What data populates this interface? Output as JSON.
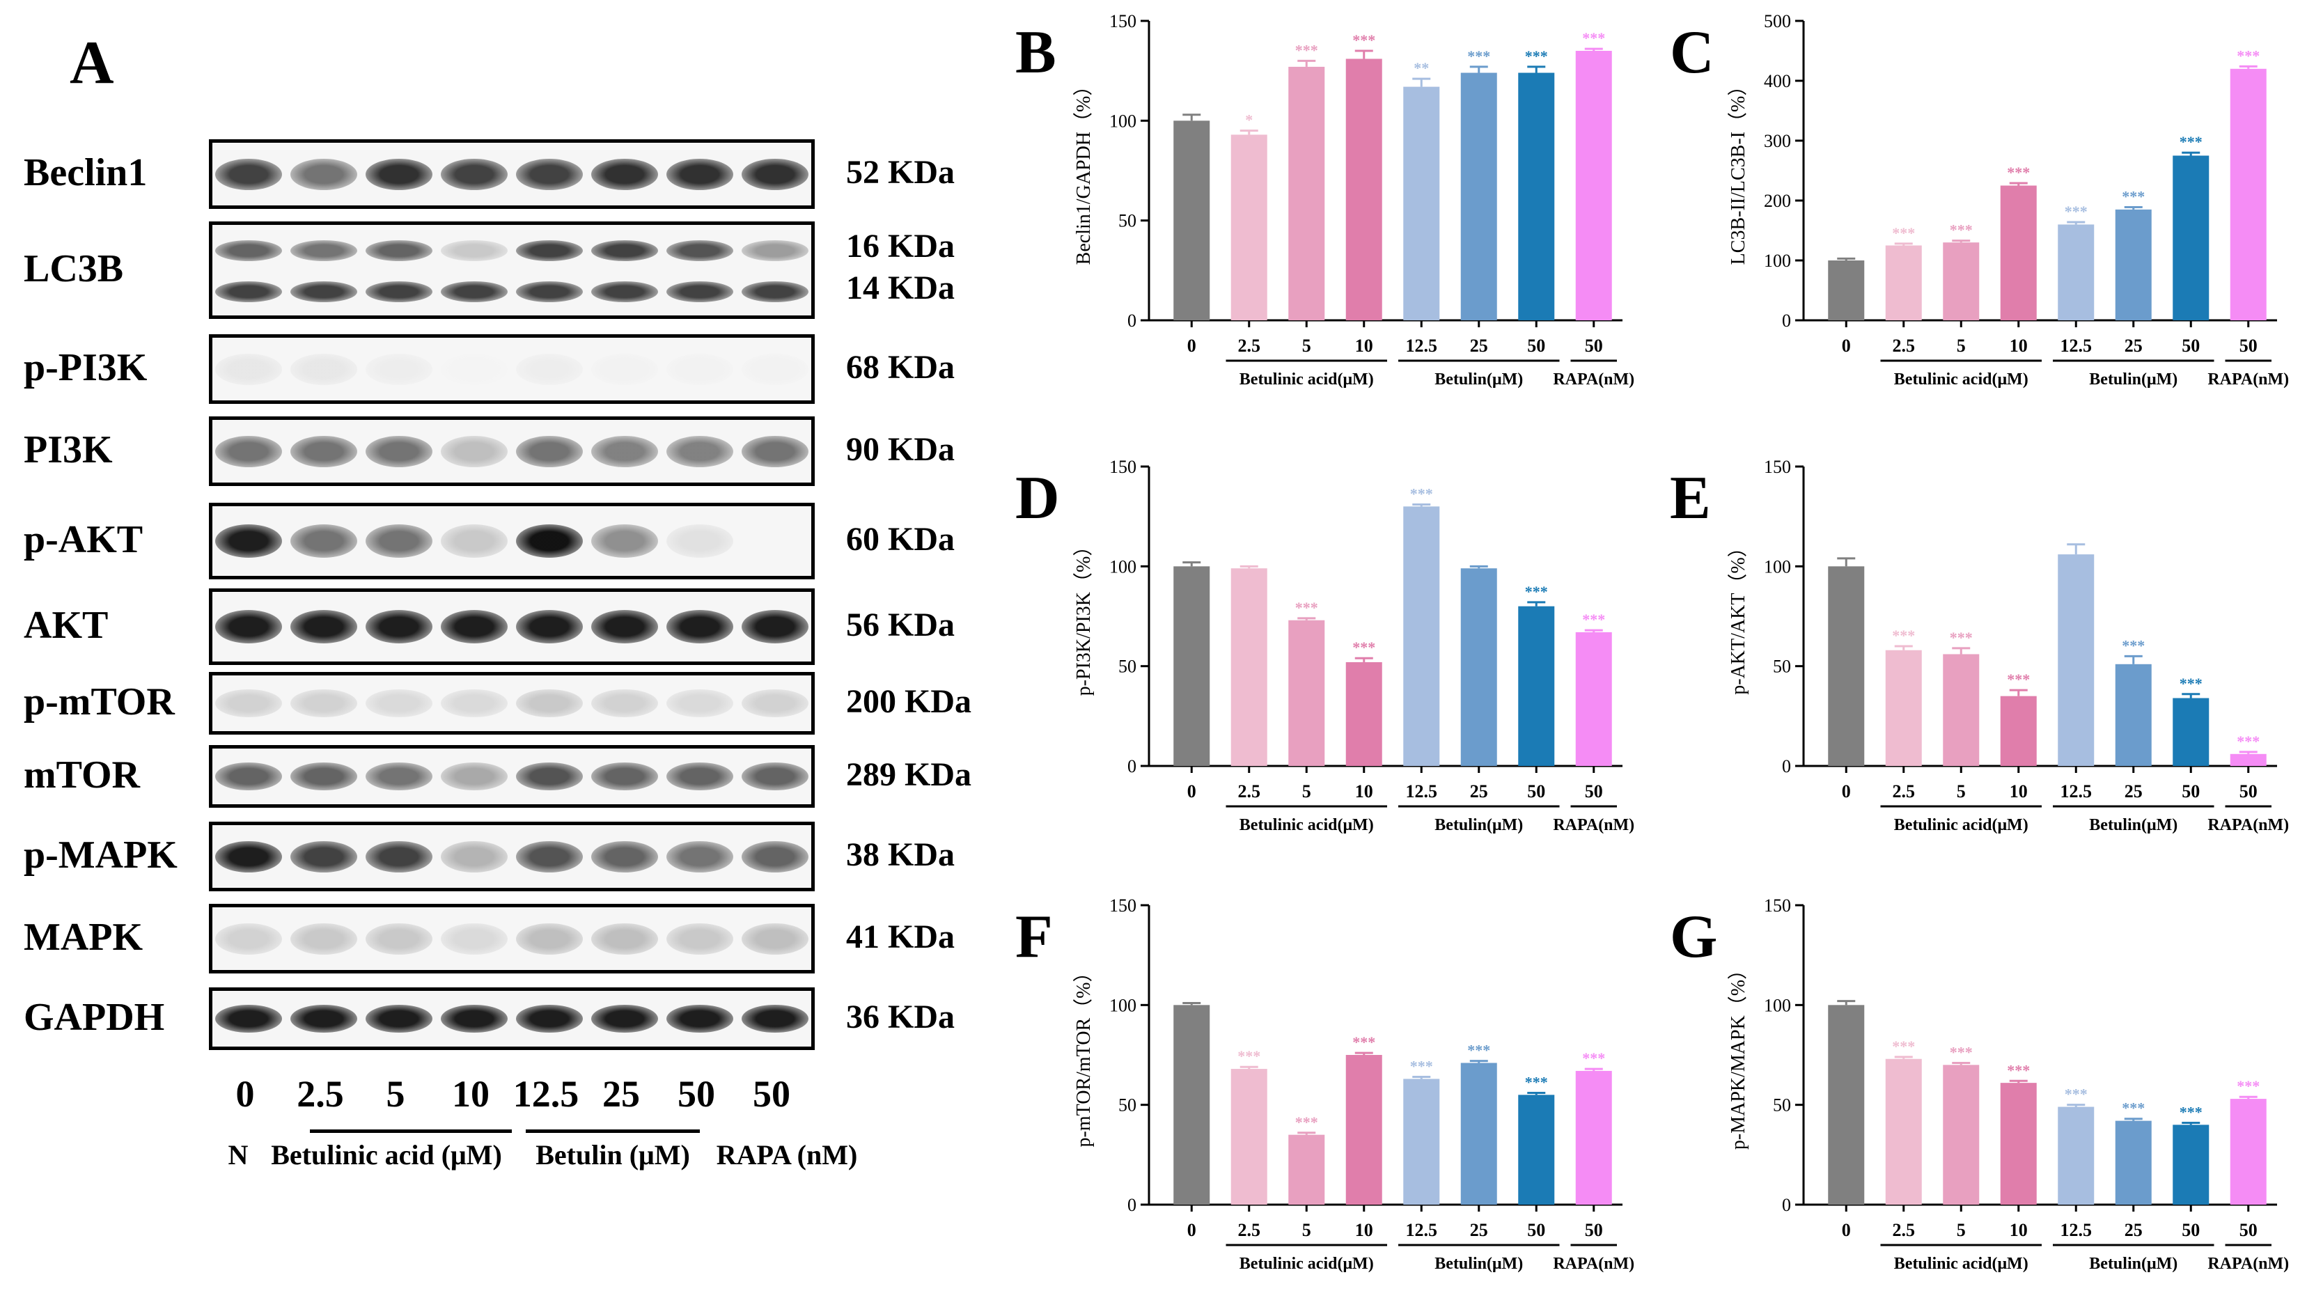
{
  "figure": {
    "panel_a": {
      "letter": "A",
      "blots": [
        {
          "protein": "Beclin1",
          "kda": "52 KDa",
          "intensity": [
            0.85,
            0.7,
            0.9,
            0.85,
            0.85,
            0.9,
            0.9,
            0.9
          ],
          "double": false
        },
        {
          "protein": "LC3B",
          "kda": "16 KDa",
          "kda2": "14 KDa",
          "intensity": [
            0.75,
            0.7,
            0.75,
            0.35,
            0.85,
            0.85,
            0.8,
            0.55
          ],
          "double": true
        },
        {
          "protein": "p-PI3K",
          "kda": "68 KDa",
          "intensity": [
            0.15,
            0.15,
            0.1,
            0.02,
            0.1,
            0.05,
            0.05,
            0.05
          ],
          "double": false
        },
        {
          "protein": "PI3K",
          "kda": "90 KDa",
          "intensity": [
            0.7,
            0.7,
            0.7,
            0.4,
            0.7,
            0.65,
            0.65,
            0.7
          ],
          "double": false
        },
        {
          "protein": "p-AKT",
          "kda": "60 KDa",
          "intensity": [
            0.95,
            0.7,
            0.7,
            0.35,
            0.98,
            0.6,
            0.2,
            0.0
          ],
          "double": false
        },
        {
          "protein": "AKT",
          "kda": "56 KDa",
          "intensity": [
            0.95,
            0.95,
            0.95,
            0.95,
            0.95,
            0.95,
            0.95,
            0.95
          ],
          "double": false
        },
        {
          "protein": "p-mTOR",
          "kda": "200 KDa",
          "intensity": [
            0.3,
            0.3,
            0.25,
            0.25,
            0.35,
            0.3,
            0.25,
            0.3
          ],
          "double": false
        },
        {
          "protein": "mTOR",
          "kda": "289 KDa",
          "intensity": [
            0.75,
            0.75,
            0.7,
            0.5,
            0.8,
            0.75,
            0.75,
            0.75
          ],
          "double": false
        },
        {
          "protein": "p-MAPK",
          "kda": "38 KDa",
          "intensity": [
            0.95,
            0.85,
            0.85,
            0.45,
            0.8,
            0.75,
            0.7,
            0.75
          ],
          "double": false
        },
        {
          "protein": "MAPK",
          "kda": "41 KDa",
          "intensity": [
            0.3,
            0.35,
            0.35,
            0.25,
            0.4,
            0.4,
            0.35,
            0.4
          ],
          "double": false
        },
        {
          "protein": "GAPDH",
          "kda": "36 KDa",
          "intensity": [
            0.95,
            0.95,
            0.95,
            0.95,
            0.95,
            0.95,
            0.95,
            0.95
          ],
          "double": false
        }
      ],
      "lanes": [
        "0",
        "2.5",
        "5",
        "10",
        "12.5",
        "25",
        "50",
        "50"
      ],
      "group_n": "N",
      "group_ba": "Betulinic acid (μM)",
      "group_bt": "Betulin (μM)",
      "group_rapa": "RAPA (nM)"
    },
    "colors": {
      "control": "#808080",
      "ba_2_5": "#efbcd0",
      "ba_5": "#e8a0c0",
      "ba_10": "#e07eab",
      "bt_12_5": "#a7bee0",
      "bt_25": "#6b9ccc",
      "bt_50": "#1b7bb5",
      "rapa": "#f58cf5"
    }
  },
  "chart_data": [
    {
      "panel": "B",
      "type": "bar",
      "ylabel": "Beclin1/GAPDH（%）",
      "ylim": [
        0,
        150
      ],
      "yticks": [
        0,
        50,
        100,
        150
      ],
      "categories": [
        "0",
        "2.5",
        "5",
        "10",
        "12.5",
        "25",
        "50",
        "50"
      ],
      "values": [
        100,
        93,
        127,
        131,
        117,
        124,
        124,
        135
      ],
      "errors": [
        3,
        2,
        3,
        4,
        4,
        3,
        3,
        1
      ],
      "significance": [
        "",
        "*",
        "***",
        "***",
        "**",
        "***",
        "***",
        "***"
      ],
      "groups": [
        "Betulinic acid(μM)",
        "Betulin(μM)",
        "RAPA(nM)"
      ]
    },
    {
      "panel": "C",
      "type": "bar",
      "ylabel": "LC3B-II/LC3B-I（%）",
      "ylim": [
        0,
        500
      ],
      "yticks": [
        0,
        100,
        200,
        300,
        400,
        500
      ],
      "categories": [
        "0",
        "2.5",
        "5",
        "10",
        "12.5",
        "25",
        "50",
        "50"
      ],
      "values": [
        100,
        125,
        130,
        225,
        160,
        185,
        275,
        420
      ],
      "errors": [
        3,
        3,
        3,
        4,
        4,
        4,
        5,
        4
      ],
      "significance": [
        "",
        "***",
        "***",
        "***",
        "***",
        "***",
        "***",
        "***"
      ],
      "groups": [
        "Betulinic acid(μM)",
        "Betulin(μM)",
        "RAPA(nM)"
      ]
    },
    {
      "panel": "D",
      "type": "bar",
      "ylabel": "p-PI3K/PI3K（%）",
      "ylim": [
        0,
        150
      ],
      "yticks": [
        0,
        50,
        100,
        150
      ],
      "categories": [
        "0",
        "2.5",
        "5",
        "10",
        "12.5",
        "25",
        "50",
        "50"
      ],
      "values": [
        100,
        99,
        73,
        52,
        130,
        99,
        80,
        67
      ],
      "errors": [
        2,
        1,
        1,
        2,
        1,
        1,
        2,
        1
      ],
      "significance": [
        "",
        "",
        "***",
        "***",
        "***",
        "",
        "***",
        "***"
      ],
      "groups": [
        "Betulinic acid(μM)",
        "Betulin(μM)",
        "RAPA(nM)"
      ]
    },
    {
      "panel": "E",
      "type": "bar",
      "ylabel": "p-AKT/AKT（%）",
      "ylim": [
        0,
        150
      ],
      "yticks": [
        0,
        50,
        100,
        150
      ],
      "categories": [
        "0",
        "2.5",
        "5",
        "10",
        "12.5",
        "25",
        "50",
        "50"
      ],
      "values": [
        100,
        58,
        56,
        35,
        106,
        51,
        34,
        6
      ],
      "errors": [
        4,
        2,
        3,
        3,
        5,
        4,
        2,
        1
      ],
      "significance": [
        "",
        "***",
        "***",
        "***",
        "",
        "***",
        "***",
        "***"
      ],
      "groups": [
        "Betulinic acid(μM)",
        "Betulin(μM)",
        "RAPA(nM)"
      ]
    },
    {
      "panel": "F",
      "type": "bar",
      "ylabel": "p-mTOR/mTOR（%）",
      "ylim": [
        0,
        150
      ],
      "yticks": [
        0,
        50,
        100,
        150
      ],
      "categories": [
        "0",
        "2.5",
        "5",
        "10",
        "12.5",
        "25",
        "50",
        "50"
      ],
      "values": [
        100,
        68,
        35,
        75,
        63,
        71,
        55,
        67
      ],
      "errors": [
        1,
        1,
        1,
        1,
        1,
        1,
        1,
        1
      ],
      "significance": [
        "",
        "***",
        "***",
        "***",
        "***",
        "***",
        "***",
        "***"
      ],
      "groups": [
        "Betulinic acid(μM)",
        "Betulin(μM)",
        "RAPA(nM)"
      ]
    },
    {
      "panel": "G",
      "type": "bar",
      "ylabel": "p-MAPK/MAPK（%）",
      "ylim": [
        0,
        150
      ],
      "yticks": [
        0,
        50,
        100,
        150
      ],
      "categories": [
        "0",
        "2.5",
        "5",
        "10",
        "12.5",
        "25",
        "50",
        "50"
      ],
      "values": [
        100,
        73,
        70,
        61,
        49,
        42,
        40,
        53
      ],
      "errors": [
        2,
        1,
        1,
        1,
        1,
        1,
        1,
        1
      ],
      "significance": [
        "",
        "***",
        "***",
        "***",
        "***",
        "***",
        "***",
        "***"
      ],
      "groups": [
        "Betulinic acid(μM)",
        "Betulin(μM)",
        "RAPA(nM)"
      ]
    }
  ]
}
